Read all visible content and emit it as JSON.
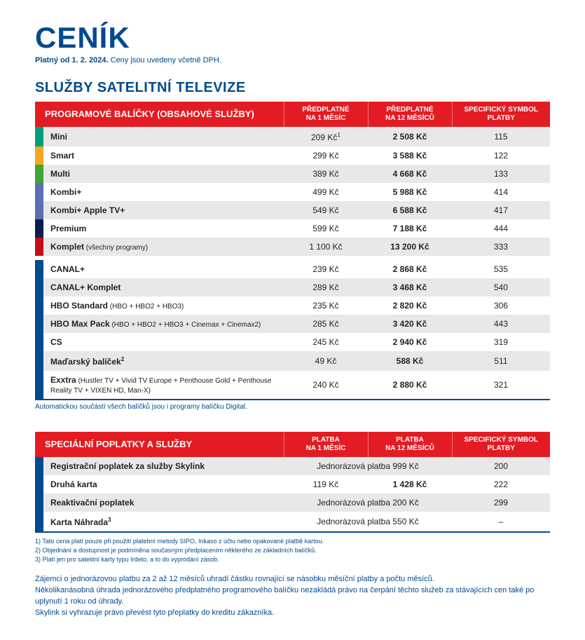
{
  "title": "CENÍK",
  "subtitle_bold": "Platný od 1. 2. 2024.",
  "subtitle_rest": " Ceny jsou uvedeny včetně DPH.",
  "section1_title": "SLUŽBY SATELITNÍ TELEVIZE",
  "table1": {
    "header_main": "PROGRAMOVÉ BALÍČKY (OBSAHOVÉ SLUŽBY)",
    "header_month_l1": "PŘEDPLATNÉ",
    "header_month_l2": "NA 1 MĚSÍC",
    "header_year_l1": "PŘEDPLATNÉ",
    "header_year_l2": "NA 12 MĚSÍCŮ",
    "header_sym_l1": "SPECIFICKÝ SYMBOL",
    "header_sym_l2": "PLATBY",
    "rows": [
      {
        "color": "#009e7e",
        "name": "Mini",
        "note": "",
        "month": "209 Kč",
        "month_sup": "1",
        "year": "2 508 Kč",
        "sym": "115",
        "gap": false
      },
      {
        "color": "#f5a623",
        "name": "Smart",
        "note": "",
        "month": "299 Kč",
        "month_sup": "",
        "year": "3 588 Kč",
        "sym": "122",
        "gap": false
      },
      {
        "color": "#3fa535",
        "name": "Multi",
        "note": "",
        "month": "389 Kč",
        "month_sup": "",
        "year": "4 668 Kč",
        "sym": "133",
        "gap": false
      },
      {
        "color": "#5c6fb0",
        "name": "Kombi+",
        "note": "",
        "month": "499 Kč",
        "month_sup": "",
        "year": "5 988 Kč",
        "sym": "414",
        "gap": false
      },
      {
        "color": "#5c6fb0",
        "name": "Kombi+ Apple TV+",
        "note": "",
        "month": "549 Kč",
        "month_sup": "",
        "year": "6 588 Kč",
        "sym": "417",
        "gap": false
      },
      {
        "color": "#0a1c4a",
        "name": "Premium",
        "note": "",
        "month": "599 Kč",
        "month_sup": "",
        "year": "7 188 Kč",
        "sym": "444",
        "gap": false
      },
      {
        "color": "#c20e1a",
        "name": "Komplet",
        "note": " (všechny programy)",
        "month": "1 100 Kč",
        "month_sup": "",
        "year": "13 200 Kč",
        "sym": "333",
        "gap": true
      },
      {
        "color": "#004a8f",
        "name": "CANAL+",
        "note": "",
        "month": "239 Kč",
        "month_sup": "",
        "year": "2 868 Kč",
        "sym": "535",
        "gap": false
      },
      {
        "color": "#004a8f",
        "name": "CANAL+ Komplet",
        "note": "",
        "month": "289 Kč",
        "month_sup": "",
        "year": "3 468 Kč",
        "sym": "540",
        "gap": false
      },
      {
        "color": "#004a8f",
        "name": "HBO Standard",
        "note": " (HBO + HBO2 + HBO3)",
        "month": "235 Kč",
        "month_sup": "",
        "year": "2 820 Kč",
        "sym": "306",
        "gap": false
      },
      {
        "color": "#004a8f",
        "name": "HBO Max Pack",
        "note": " (HBO + HBO2 + HBO3 + Cinemax + Cinemax2)",
        "month": "285 Kč",
        "month_sup": "",
        "year": "3 420 Kč",
        "sym": "443",
        "gap": false
      },
      {
        "color": "#004a8f",
        "name": "CS",
        "note": "",
        "month": "245 Kč",
        "month_sup": "",
        "year": "2 940 Kč",
        "sym": "319",
        "gap": false
      },
      {
        "color": "#004a8f",
        "name": "Maďarský balíček",
        "note": "",
        "name_sup": "2",
        "month": "49 Kč",
        "month_sup": "",
        "year": "588 Kč",
        "sym": "511",
        "gap": false
      },
      {
        "color": "#004a8f",
        "name": "Exxtra",
        "note": " (Hustler TV + Vivid TV Europe + Penthouse Gold + Penthouse Reality TV + VIXEN HD, Man-X)",
        "month": "240 Kč",
        "month_sup": "",
        "year": "2 880 Kč",
        "sym": "321",
        "gap": false
      }
    ]
  },
  "auto_note": "Automatickou součástí všech balíčků jsou i programy balíčku Digital.",
  "table2": {
    "header_main": "SPECIÁLNÍ POPLATKY A SLUŽBY",
    "header_month_l1": "PLATBA",
    "header_month_l2": "NA 1 MĚSÍC",
    "header_year_l1": "PLATBA",
    "header_year_l2": "NA 12 MĚSÍCŮ",
    "header_sym_l1": "SPECIFICKÝ SYMBOL",
    "header_sym_l2": "PLATBY",
    "rows": [
      {
        "color": "#004a8f",
        "name": "Registrační poplatek za služby Skylink",
        "merged": "Jednorázová platba 999 Kč",
        "sym": "200"
      },
      {
        "color": "#004a8f",
        "name": "Druhá karta",
        "month": "119 Kč",
        "year": "1 428 Kč",
        "sym": "222"
      },
      {
        "color": "#004a8f",
        "name": "Reaktivační poplatek",
        "merged": "Jednorázová platba 200 Kč",
        "sym": "299"
      },
      {
        "color": "#004a8f",
        "name": "Karta Náhrada",
        "name_sup": "3",
        "merged": "Jednorázová platba 550 Kč",
        "sym": "–"
      }
    ]
  },
  "footnotes": {
    "f1": "1) Tato cena platí pouze při použití platební metody SIPO, Inkaso z účtu nebo opakované platbě kartou.",
    "f2": "2) Objednání a dostupnost je podmíněna současným předplacením některého ze základních balíčků.",
    "f3": "3) Platí jen pro satelitní karty typu Irdeto, a to do vyprodání zásob."
  },
  "bodytext": {
    "p1": "Zájemci o jednorázovou platbu za 2 až 12 měsíců uhradí částku rovnající se násobku měsíční platby a počtu měsíců.",
    "p2": "Několikanásobná úhrada jednorázového předplatného programového balíčku nezakládá právo na čerpání těchto služeb za stávajících cen také po uplynutí 1 roku od úhrady.",
    "p3": "Skylink si vyhrazuje právo převést tyto přeplatky do kreditu zákazníka."
  }
}
